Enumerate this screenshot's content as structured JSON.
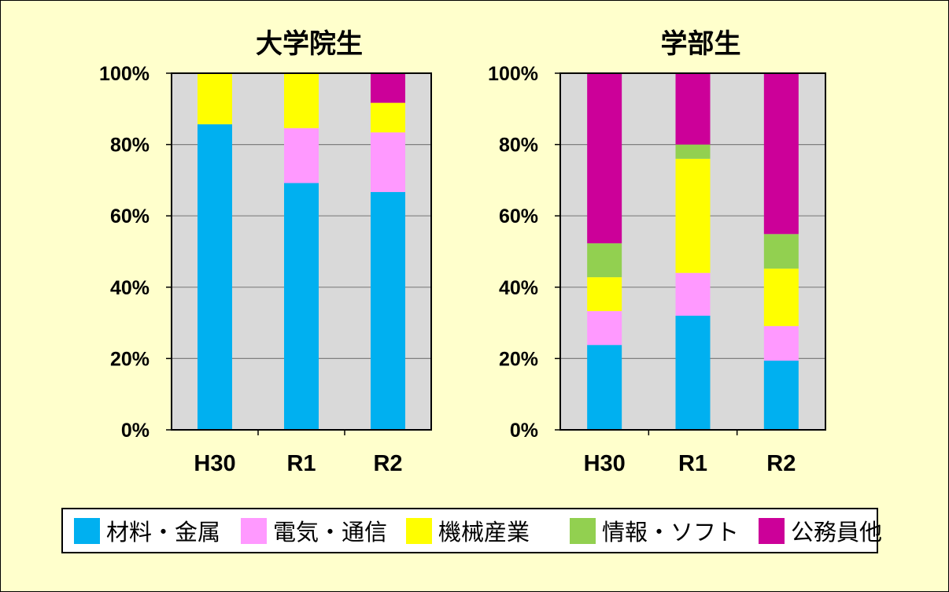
{
  "chart_data": [
    {
      "type": "bar",
      "stacked": true,
      "title": "大学院生",
      "categories": [
        "H30",
        "R1",
        "R2"
      ],
      "yticks": [
        "0%",
        "20%",
        "40%",
        "60%",
        "80%",
        "100%"
      ],
      "ylim": [
        0,
        100
      ],
      "grid": true,
      "series": [
        {
          "name": "材料・金属",
          "values": [
            85.7,
            69.2,
            66.7
          ]
        },
        {
          "name": "電気・通信",
          "values": [
            0,
            15.4,
            16.7
          ]
        },
        {
          "name": "機械産業",
          "values": [
            14.3,
            15.4,
            8.3
          ]
        },
        {
          "name": "情報・ソフト",
          "values": [
            0,
            0,
            0
          ]
        },
        {
          "name": "公務員他",
          "values": [
            0,
            0,
            8.3
          ]
        }
      ]
    },
    {
      "type": "bar",
      "stacked": true,
      "title": "学部生",
      "categories": [
        "H30",
        "R1",
        "R2"
      ],
      "yticks": [
        "0%",
        "20%",
        "40%",
        "60%",
        "80%",
        "100%"
      ],
      "ylim": [
        0,
        100
      ],
      "grid": true,
      "series": [
        {
          "name": "材料・金属",
          "values": [
            23.8,
            32.0,
            19.4
          ]
        },
        {
          "name": "電気・通信",
          "values": [
            9.5,
            12.0,
            9.7
          ]
        },
        {
          "name": "機械産業",
          "values": [
            9.5,
            32.0,
            16.1
          ]
        },
        {
          "name": "情報・ソフト",
          "values": [
            9.5,
            4.0,
            9.7
          ]
        },
        {
          "name": "公務員他",
          "values": [
            47.7,
            20.0,
            45.1
          ]
        }
      ]
    }
  ],
  "colors": {
    "材料・金属": "#00B0F0",
    "電気・通信": "#FF99FF",
    "機械産業": "#FFFF00",
    "情報・ソフト": "#92D050",
    "公務員他": "#CC0099",
    "plot_background": "#D9D9D9",
    "page_background": "#FFFFCC"
  },
  "legend": {
    "placement": "bottom",
    "items": [
      {
        "label": "材料・金属",
        "color": "#00B0F0"
      },
      {
        "label": "電気・通信",
        "color": "#FF99FF"
      },
      {
        "label": "機械産業",
        "color": "#FFFF00"
      },
      {
        "label": "情報・ソフト",
        "color": "#92D050"
      },
      {
        "label": "公務員他",
        "color": "#CC0099"
      }
    ]
  }
}
